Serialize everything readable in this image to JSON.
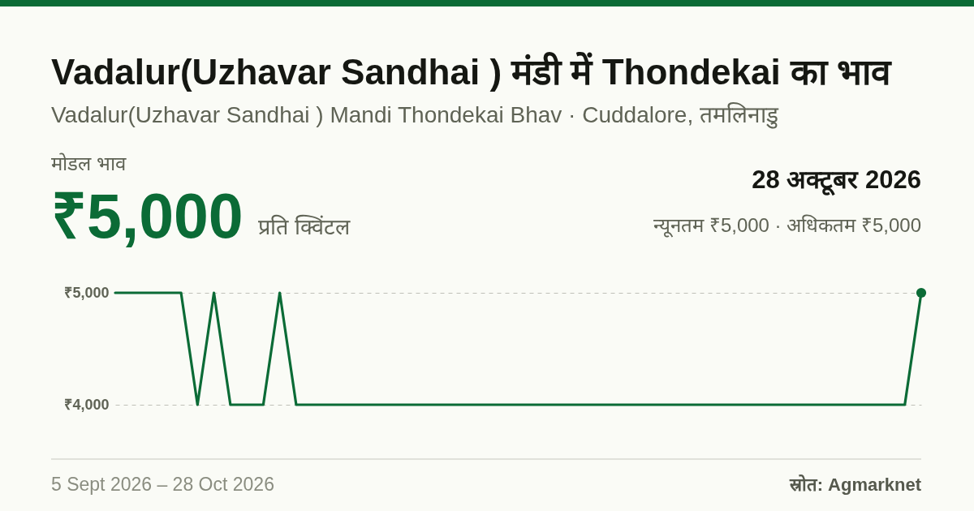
{
  "chart_data": {
    "type": "line",
    "title": "Vadalur(Uzhavar Sandhai ) मंडी में Thondekai का भाव",
    "subtitle": "Vadalur(Uzhavar Sandhai ) Mandi Thondekai Bhav · Cuddalore, तमलिनाडु",
    "annotations": [
      "मोडल भाव",
      "₹5,000",
      "प्रति क्विंटल",
      "28 अक्टूबर 2026",
      "न्यूनतम ₹5,000 · अधिकतम ₹5,000",
      "5 Sept 2026 – 28 Oct 2026",
      "स्रोत: Agmarknet"
    ],
    "categories": [
      null,
      null,
      null,
      null,
      null,
      null,
      null,
      null,
      null,
      null,
      null,
      null,
      null,
      null,
      null,
      null,
      null,
      null,
      null,
      null,
      null,
      null,
      null,
      null,
      null,
      null,
      null,
      null,
      null,
      null,
      null,
      null,
      null,
      null,
      null,
      null,
      null,
      null,
      null,
      null,
      null,
      null,
      null,
      null,
      null,
      null,
      null,
      null,
      null,
      null
    ],
    "series": [
      {
        "type": "line",
        "color": "#0b6b36",
        "values": [
          5000,
          5000,
          5000,
          5000,
          5000,
          4000,
          5000,
          4000,
          4000,
          4000,
          5000,
          4000,
          4000,
          4000,
          4000,
          4000,
          4000,
          4000,
          4000,
          4000,
          4000,
          4000,
          4000,
          4000,
          4000,
          4000,
          4000,
          4000,
          4000,
          4000,
          4000,
          4000,
          4000,
          4000,
          4000,
          4000,
          4000,
          4000,
          4000,
          4000,
          4000,
          4000,
          4000,
          4000,
          4000,
          4000,
          4000,
          4000,
          4000,
          5000
        ]
      },
      {
        "type": "scatter",
        "color": "#0b6b36",
        "values": [
          null,
          null,
          null,
          null,
          null,
          null,
          null,
          null,
          null,
          null,
          null,
          null,
          null,
          null,
          null,
          null,
          null,
          null,
          null,
          null,
          null,
          null,
          null,
          null,
          null,
          null,
          null,
          null,
          null,
          null,
          null,
          null,
          null,
          null,
          null,
          null,
          null,
          null,
          null,
          null,
          null,
          null,
          null,
          null,
          null,
          null,
          null,
          null,
          null,
          5000
        ]
      }
    ],
    "ylim": [
      4000,
      5000
    ],
    "yticks": [
      {
        "value": 4000,
        "label": "₹4,000"
      },
      {
        "value": 5000,
        "label": "₹5,000"
      }
    ],
    "grid": "y"
  }
}
